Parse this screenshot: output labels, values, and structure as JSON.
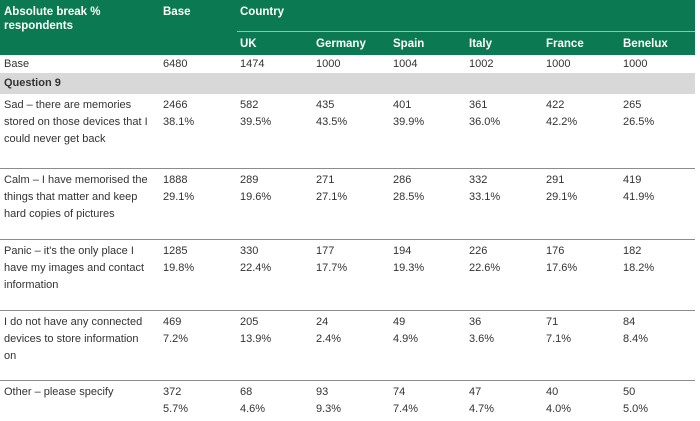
{
  "table": {
    "header": {
      "label": "Absolute break % respondents",
      "base": "Base",
      "country": "Country",
      "countries": [
        "UK",
        "Germany",
        "Spain",
        "Italy",
        "France",
        "Benelux"
      ]
    },
    "base_row": {
      "label": "Base",
      "values": [
        "6480",
        "1474",
        "1000",
        "1004",
        "1002",
        "1000",
        "1000"
      ]
    },
    "section": "Question 9",
    "rows": [
      {
        "label": "Sad – there are memories stored on those devices that I could never get back",
        "counts": [
          "2466",
          "582",
          "435",
          "401",
          "361",
          "422",
          "265"
        ],
        "percents": [
          "38.1%",
          "39.5%",
          "43.5%",
          "39.9%",
          "36.0%",
          "42.2%",
          "26.5%"
        ]
      },
      {
        "label": "Calm – I have memorised the things that matter and keep hard copies of pictures",
        "counts": [
          "1888",
          "289",
          "271",
          "286",
          "332",
          "291",
          "419"
        ],
        "percents": [
          "29.1%",
          "19.6%",
          "27.1%",
          "28.5%",
          "33.1%",
          "29.1%",
          "41.9%"
        ]
      },
      {
        "label": "Panic – it's the only place I have my images and contact information",
        "counts": [
          "1285",
          "330",
          "177",
          "194",
          "226",
          "176",
          "182"
        ],
        "percents": [
          "19.8%",
          "22.4%",
          "17.7%",
          "19.3%",
          "22.6%",
          "17.6%",
          "18.2%"
        ]
      },
      {
        "label": "I do not have any connected devices to store information on",
        "counts": [
          "469",
          "205",
          "24",
          "49",
          "36",
          "71",
          "84"
        ],
        "percents": [
          "7.2%",
          "13.9%",
          "2.4%",
          "4.9%",
          "3.6%",
          "7.1%",
          "8.4%"
        ]
      },
      {
        "label": "Other – please specify",
        "counts": [
          "372",
          "68",
          "93",
          "74",
          "47",
          "40",
          "50"
        ],
        "percents": [
          "5.7%",
          "4.6%",
          "9.3%",
          "7.4%",
          "4.7%",
          "4.0%",
          "5.0%"
        ]
      }
    ]
  }
}
